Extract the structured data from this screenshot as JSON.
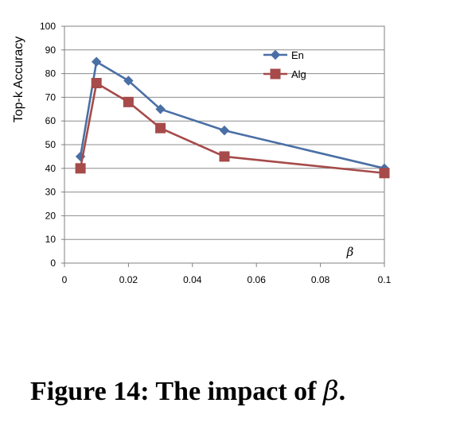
{
  "chart_data": {
    "type": "line",
    "title": "",
    "xlabel": "β",
    "ylabel": "Top-k Accuracy",
    "xlim": [
      0,
      0.1
    ],
    "ylim": [
      0,
      100
    ],
    "x_ticks": [
      "0",
      "0.02",
      "0.04",
      "0.06",
      "0.08",
      "0.1"
    ],
    "y_ticks": [
      "0",
      "10",
      "20",
      "30",
      "40",
      "50",
      "60",
      "70",
      "80",
      "90",
      "100"
    ],
    "grid": "horizontal",
    "legend_position": "top-right",
    "series": [
      {
        "name": "En",
        "color": "#4a6fa5",
        "marker": "diamond",
        "x": [
          0.005,
          0.01,
          0.02,
          0.03,
          0.05,
          0.1
        ],
        "y": [
          45,
          85,
          77,
          65,
          56,
          40
        ]
      },
      {
        "name": "Alg",
        "color": "#a64a4a",
        "marker": "square",
        "x": [
          0.005,
          0.01,
          0.02,
          0.03,
          0.05,
          0.1
        ],
        "y": [
          40,
          76,
          68,
          57,
          45,
          38
        ]
      }
    ]
  },
  "caption": {
    "prefix": "Figure 14: The impact of ",
    "symbol": "β",
    "suffix": "."
  }
}
